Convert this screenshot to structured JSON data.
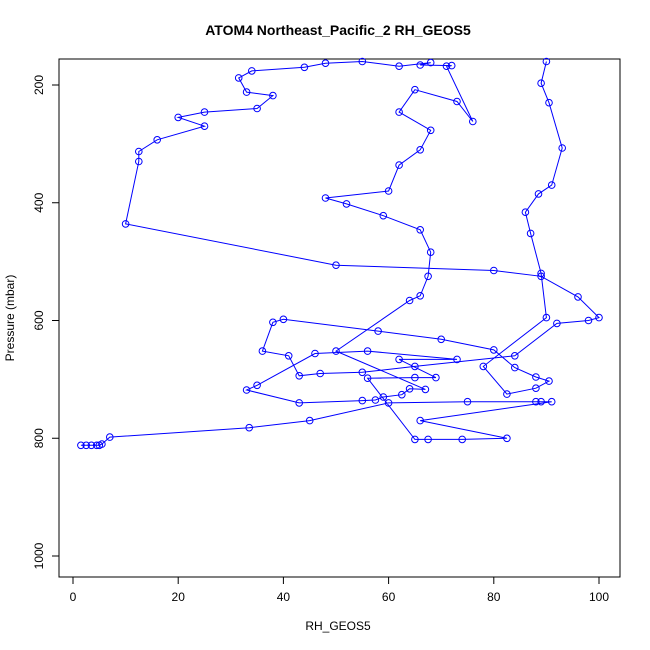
{
  "chart_data": {
    "type": "line",
    "title": "ATOM4 Northeast_Pacific_2 RH_GEOS5",
    "xlabel": "RH_GEOS5",
    "ylabel": "Pressure (mbar)",
    "xlim": [
      0,
      100
    ],
    "ylim": [
      1030,
      160
    ],
    "y_reversed": true,
    "xticks": [
      0,
      20,
      40,
      60,
      80,
      100
    ],
    "yticks": [
      200,
      400,
      600,
      800,
      1000
    ],
    "grid": false,
    "line_color": "#0000ff",
    "point_color": "#0000ff",
    "points": [
      [
        1.5,
        812
      ],
      [
        2.5,
        812
      ],
      [
        3.5,
        812
      ],
      [
        4.5,
        812
      ],
      [
        5,
        812
      ],
      [
        5.5,
        810
      ],
      [
        7,
        798
      ],
      [
        33.5,
        782
      ],
      [
        45,
        770
      ],
      [
        60,
        740
      ],
      [
        75,
        738
      ],
      [
        88,
        738
      ],
      [
        89,
        738
      ],
      [
        91,
        738
      ],
      [
        66,
        770
      ],
      [
        82.5,
        800
      ],
      [
        74,
        802
      ],
      [
        67.5,
        802
      ],
      [
        65,
        802
      ],
      [
        56,
        698
      ],
      [
        65,
        697
      ],
      [
        69,
        697
      ],
      [
        62,
        666
      ],
      [
        73,
        666
      ],
      [
        56,
        652
      ],
      [
        46,
        656
      ],
      [
        35,
        710
      ],
      [
        33,
        718
      ],
      [
        43,
        740
      ],
      [
        55,
        736
      ],
      [
        57.5,
        735
      ],
      [
        59,
        730
      ],
      [
        62.5,
        726
      ],
      [
        64,
        716
      ],
      [
        67,
        717
      ],
      [
        50,
        652
      ],
      [
        64,
        566
      ],
      [
        66,
        558
      ],
      [
        67.5,
        525
      ],
      [
        68,
        484
      ],
      [
        66,
        446
      ],
      [
        59,
        422
      ],
      [
        52,
        402
      ],
      [
        48,
        392
      ],
      [
        60,
        380
      ],
      [
        62,
        336
      ],
      [
        66,
        310
      ],
      [
        68,
        277
      ],
      [
        62,
        246
      ],
      [
        65,
        208
      ],
      [
        73,
        228
      ],
      [
        76,
        262
      ],
      [
        71,
        168
      ],
      [
        72,
        167
      ],
      [
        66,
        166
      ],
      [
        68,
        162
      ],
      [
        62,
        168
      ],
      [
        55,
        160
      ],
      [
        48,
        163
      ],
      [
        44,
        170
      ],
      [
        34,
        176
      ],
      [
        31.5,
        188
      ],
      [
        33,
        212
      ],
      [
        38,
        218
      ],
      [
        35,
        240
      ],
      [
        25,
        246
      ],
      [
        20,
        255
      ],
      [
        25,
        270
      ],
      [
        16,
        293
      ],
      [
        12.5,
        313
      ],
      [
        12.5,
        330
      ],
      [
        10,
        436
      ],
      [
        50,
        506
      ],
      [
        80,
        515
      ],
      [
        89,
        525
      ],
      [
        96,
        560
      ],
      [
        100,
        595
      ],
      [
        98,
        600
      ],
      [
        92,
        605
      ],
      [
        84,
        660
      ],
      [
        65,
        678
      ],
      [
        55,
        688
      ],
      [
        47,
        690
      ],
      [
        43,
        694
      ],
      [
        41,
        660
      ],
      [
        36,
        652
      ],
      [
        38,
        603
      ],
      [
        40,
        598
      ],
      [
        58,
        618
      ],
      [
        70,
        632
      ],
      [
        80,
        650
      ],
      [
        84,
        680
      ],
      [
        88,
        696
      ],
      [
        90.5,
        703
      ],
      [
        88,
        715
      ],
      [
        82.5,
        725
      ],
      [
        78,
        678
      ],
      [
        90,
        595
      ],
      [
        89,
        520
      ],
      [
        87,
        452
      ],
      [
        86,
        416
      ],
      [
        88.5,
        385
      ],
      [
        91,
        370
      ],
      [
        93,
        307
      ],
      [
        90.5,
        230
      ],
      [
        89,
        197
      ],
      [
        90,
        160
      ]
    ]
  }
}
